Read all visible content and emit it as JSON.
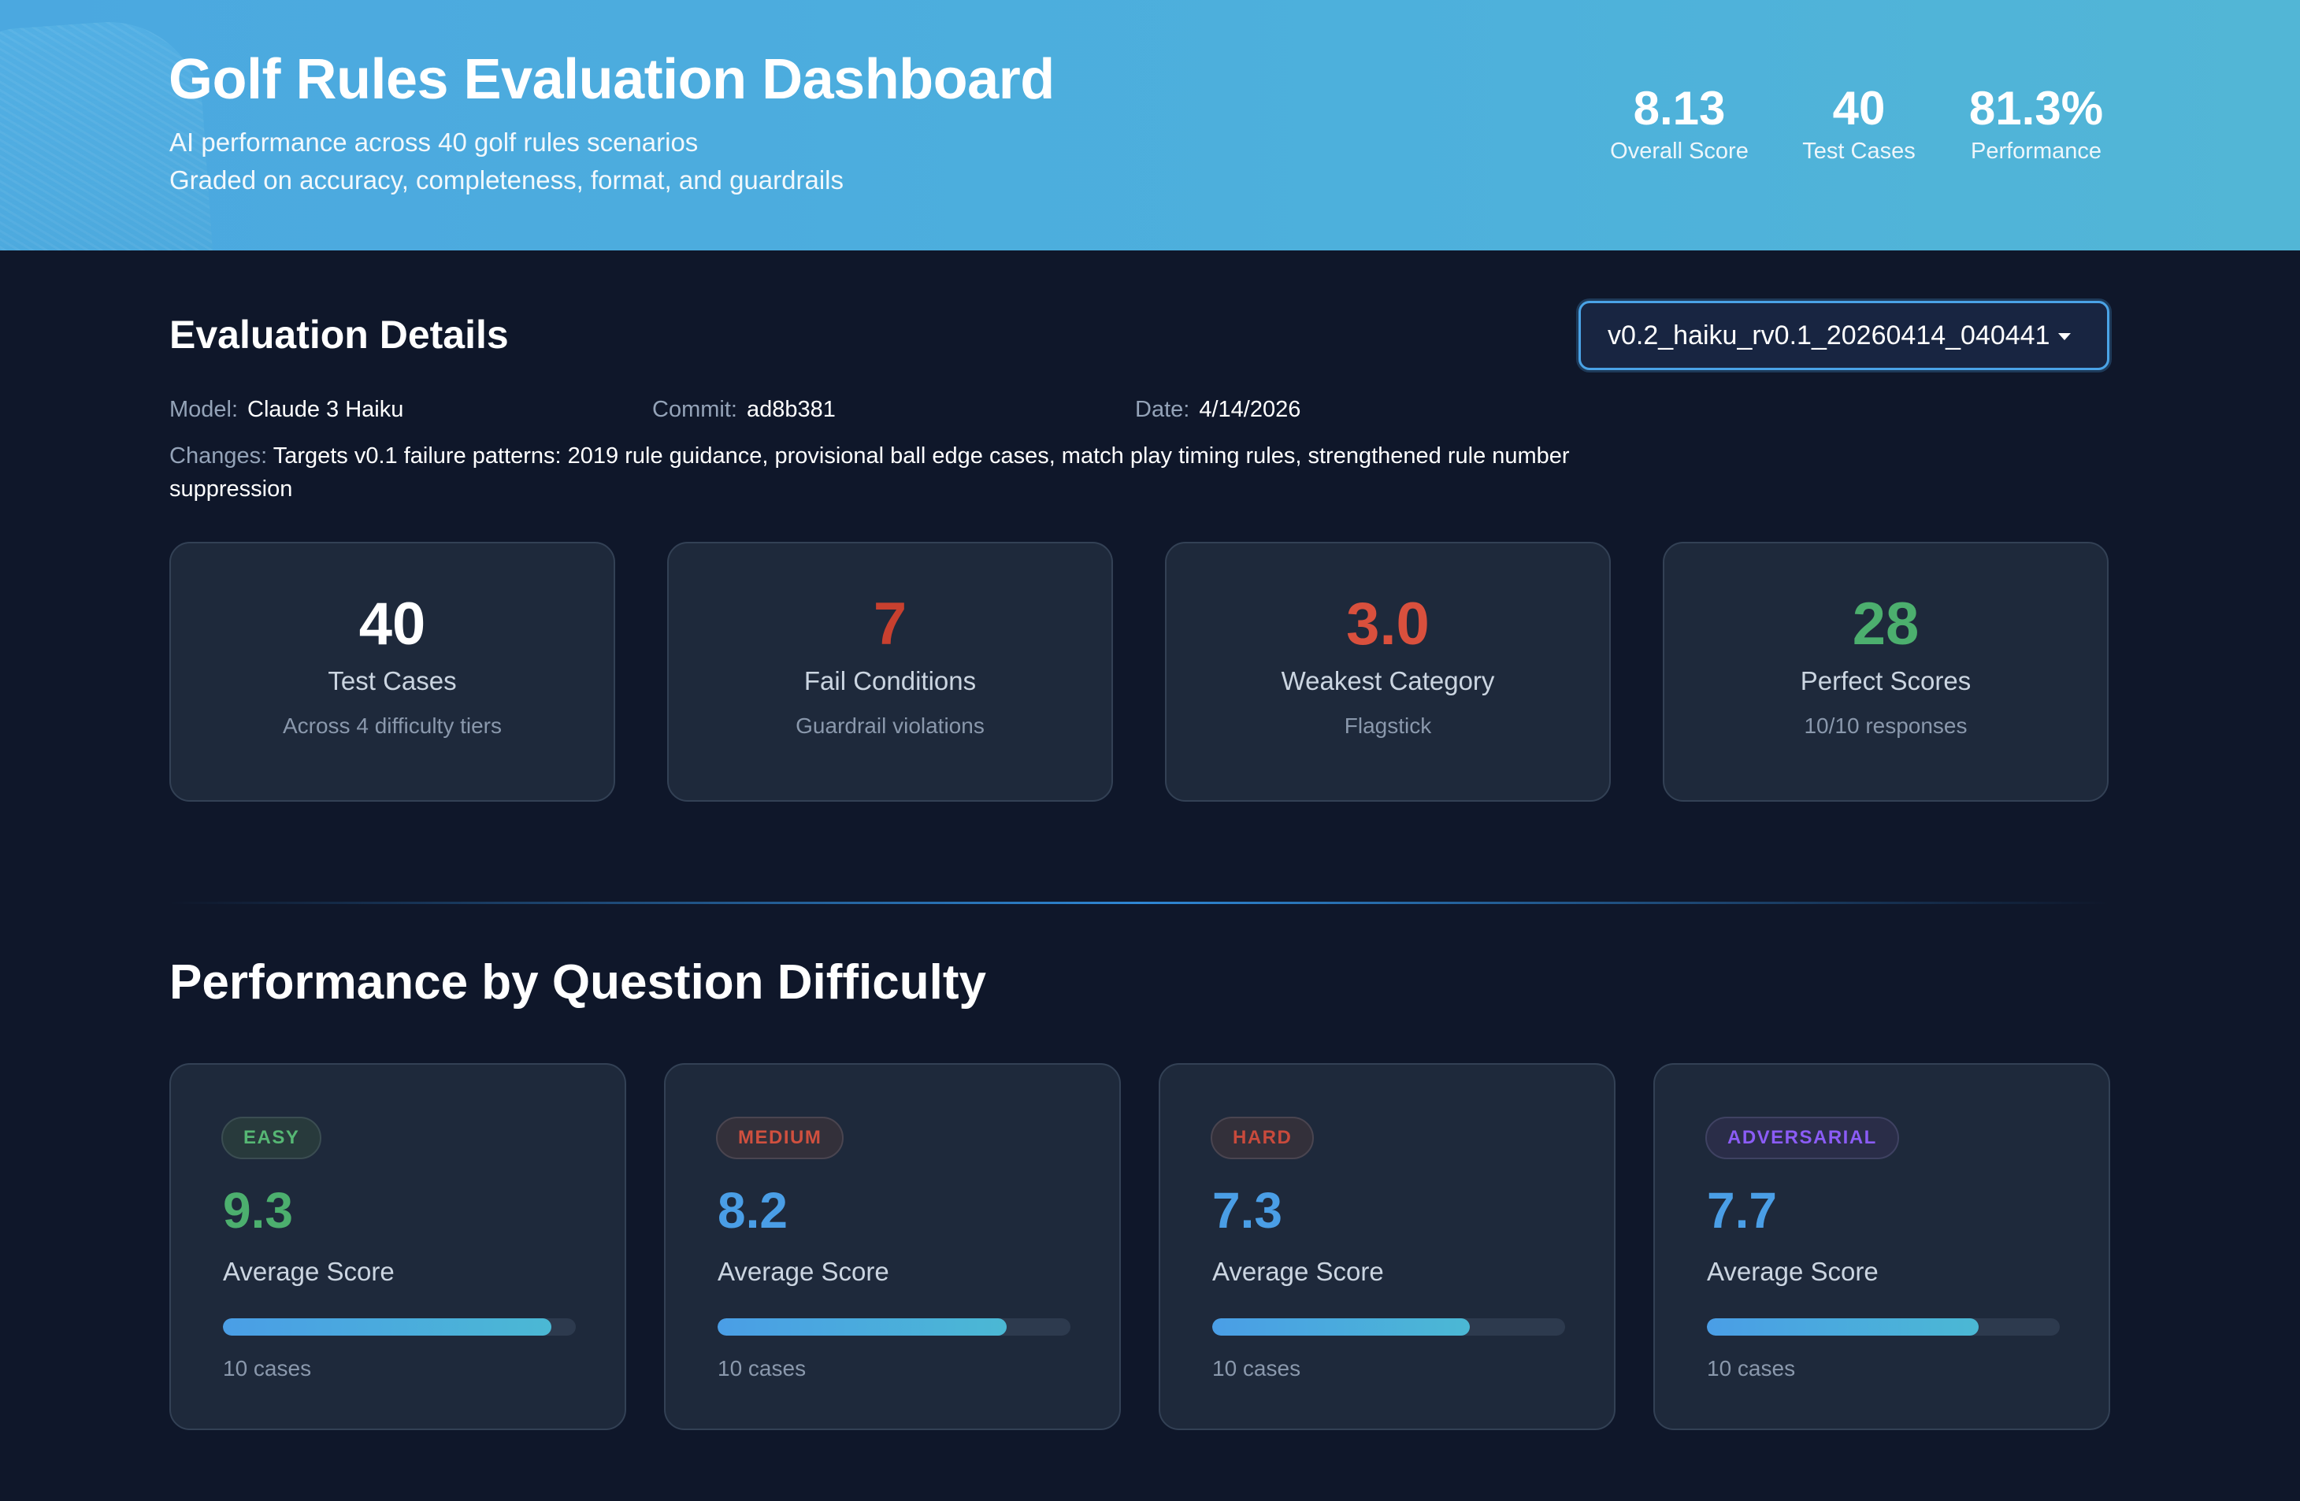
{
  "header": {
    "title": "Golf Rules Evaluation Dashboard",
    "subtitle_1": "AI performance across 40 golf rules scenarios",
    "subtitle_2": "Graded on accuracy, completeness, format, and guardrails",
    "stats": [
      {
        "value": "8.13",
        "label": "Overall Score"
      },
      {
        "value": "40",
        "label": "Test Cases"
      },
      {
        "value": "81.3%",
        "label": "Performance"
      }
    ]
  },
  "details": {
    "title": "Evaluation Details",
    "version_selected": "v0.2_haiku_rv0.1_20260414_040441",
    "model_label": "Model:",
    "model_value": "Claude 3 Haiku",
    "commit_label": "Commit:",
    "commit_value": "ad8b381",
    "date_label": "Date:",
    "date_value": "4/14/2026",
    "changes_label": "Changes:",
    "changes_value": "Targets v0.1 failure patterns: 2019 rule guidance, provisional ball edge cases, match play timing rules, strengthened rule number suppression"
  },
  "summary_cards": [
    {
      "value": "40",
      "label": "Test Cases",
      "sub": "Across 4 difficulty tiers",
      "color": "#ffffff"
    },
    {
      "value": "7",
      "label": "Fail Conditions",
      "sub": "Guardrail violations",
      "color": "#c8402f"
    },
    {
      "value": "3.0",
      "label": "Weakest Category",
      "sub": "Flagstick",
      "color": "#d9503d"
    },
    {
      "value": "28",
      "label": "Perfect Scores",
      "sub": "10/10 responses",
      "color": "#4caf6e"
    }
  ],
  "difficulty": {
    "title": "Performance by Question Difficulty",
    "cards": [
      {
        "badge": "EASY",
        "badge_color": "#56b774",
        "badge_bg": "#283a3c",
        "badge_border": "#3b4d52",
        "score": "9.3",
        "score_color": "#4caf6e",
        "label": "Average Score",
        "fill_percent": 93,
        "cases": "10 cases"
      },
      {
        "badge": "MEDIUM",
        "badge_color": "#d0503f",
        "badge_bg": "#33303a",
        "badge_border": "#4a4550",
        "score": "8.2",
        "score_color": "#4a9ee6",
        "label": "Average Score",
        "fill_percent": 82,
        "cases": "10 cases"
      },
      {
        "badge": "HARD",
        "badge_color": "#c84a3c",
        "badge_bg": "#33303a",
        "badge_border": "#4a4550",
        "score": "7.3",
        "score_color": "#4a9ee6",
        "label": "Average Score",
        "fill_percent": 73,
        "cases": "10 cases"
      },
      {
        "badge": "ADVERSARIAL",
        "badge_color": "#8b5cf6",
        "badge_bg": "#2a2d48",
        "badge_border": "#3f4262",
        "score": "7.7",
        "score_color": "#4a9ee6",
        "label": "Average Score",
        "fill_percent": 77,
        "cases": "10 cases"
      }
    ]
  }
}
